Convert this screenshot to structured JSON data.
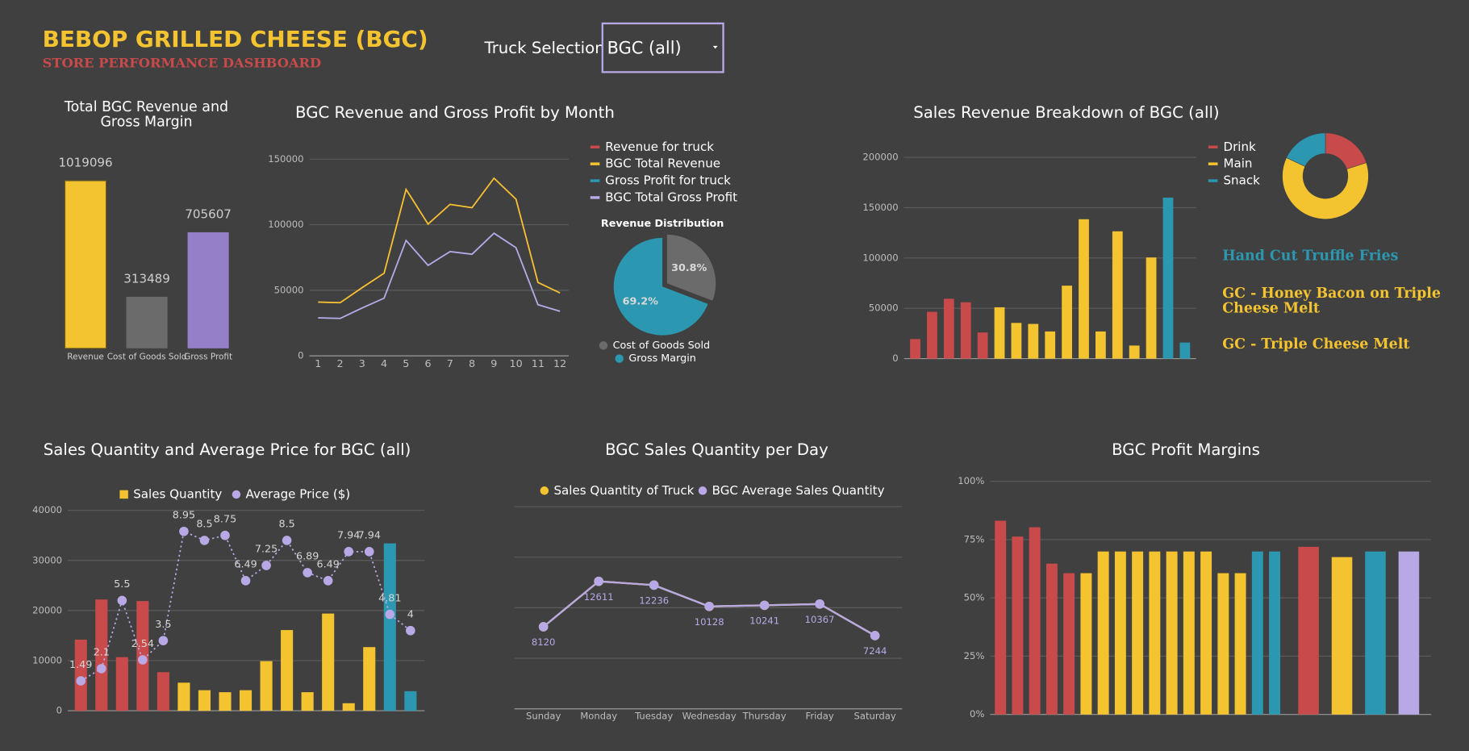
{
  "header": {
    "title": "BEBOP GRILLED CHEESE (BGC)",
    "subtitle": "STORE PERFORMANCE DASHBOARD"
  },
  "truck_selection": {
    "label": "Truck Selection",
    "value": "BGC (all)"
  },
  "chart_data": [
    {
      "type": "bar",
      "title": "Total BGC Revenue and Gross Margin",
      "categories": [
        "Revenue",
        "Cost of Goods Sold",
        "Gross Profit"
      ],
      "values": [
        1019096,
        313489,
        705607
      ],
      "colors": [
        "#f4c430",
        "#6b6b6b",
        "#9480c8"
      ]
    },
    {
      "type": "line",
      "title": "BGC Revenue and Gross Profit by Month",
      "x": [
        1,
        2,
        3,
        4,
        5,
        6,
        7,
        8,
        9,
        10,
        11,
        12
      ],
      "xlim": [
        0.6,
        12.4
      ],
      "xticks": [
        1,
        2,
        3,
        4,
        5,
        6,
        7,
        8,
        9,
        10,
        11,
        12
      ],
      "ylim": [
        0,
        150000
      ],
      "yticks": [
        0,
        50000,
        100000,
        150000
      ],
      "grid": true,
      "series": [
        {
          "name": "Revenue for truck",
          "color": "#c94a4a",
          "values": [
            41000,
            40500,
            52000,
            63000,
            127000,
            100500,
            115500,
            113000,
            135500,
            119500,
            56000,
            48000
          ]
        },
        {
          "name": "BGC Total Revenue",
          "color": "#f4c430",
          "values": [
            41000,
            40500,
            52000,
            63000,
            127000,
            100500,
            115500,
            113000,
            135500,
            119500,
            56000,
            48000
          ]
        },
        {
          "name": "Gross Profit for truck",
          "color": "#2b97b0",
          "values": [
            29000,
            28500,
            36500,
            44000,
            88000,
            69000,
            79500,
            77500,
            93500,
            82500,
            39000,
            34000
          ]
        },
        {
          "name": "BGC Total Gross Profit",
          "color": "#b8a9e6",
          "values": [
            29000,
            28500,
            36500,
            44000,
            88000,
            69000,
            79500,
            77500,
            93500,
            82500,
            39000,
            34000
          ]
        }
      ]
    },
    {
      "type": "pie",
      "title": "Revenue Distribution",
      "categories": [
        "Cost of Goods Sold",
        "Gross Margin"
      ],
      "values": [
        30.8,
        69.2
      ],
      "value_labels": [
        "30.8%",
        "69.2%"
      ],
      "colors": [
        "#6b6b6b",
        "#2b97b0"
      ]
    },
    {
      "type": "bar",
      "title": "Sales Revenue Breakdown of BGC (all)",
      "values": [
        19500,
        46500,
        59500,
        56000,
        26000,
        51000,
        35500,
        34500,
        27000,
        72500,
        138500,
        27000,
        126500,
        13000,
        100500,
        160000,
        16000
      ],
      "colors": [
        "#c94a4a",
        "#c94a4a",
        "#c94a4a",
        "#c94a4a",
        "#c94a4a",
        "#f4c430",
        "#f4c430",
        "#f4c430",
        "#f4c430",
        "#f4c430",
        "#f4c430",
        "#f4c430",
        "#f4c430",
        "#f4c430",
        "#f4c430",
        "#2b97b0",
        "#2b97b0"
      ],
      "ylim": [
        0,
        200000
      ],
      "yticks": [
        0,
        50000,
        100000,
        150000,
        200000
      ],
      "grid": true,
      "annotations": [
        {
          "text": "Hand Cut Truffle Fries",
          "color": "#2b97b0"
        },
        {
          "text": "GC - Honey Bacon on Triple Cheese Melt",
          "color": "#f4c430"
        },
        {
          "text": "GC - Triple Cheese Melt",
          "color": "#f4c430"
        }
      ]
    },
    {
      "type": "donut",
      "categories": [
        "Drink",
        "Main",
        "Snack"
      ],
      "values": [
        20,
        62,
        18
      ],
      "colors": [
        "#c94a4a",
        "#f4c430",
        "#2b97b0"
      ]
    },
    {
      "type": "bar",
      "title": "Sales Quantity and Average Price for BGC (all)",
      "ylim": [
        0,
        40000
      ],
      "yticks": [
        0,
        10000,
        20000,
        30000,
        40000
      ],
      "y2lim": [
        0,
        10
      ],
      "grid": true,
      "series": [
        {
          "name": "Sales Quantity",
          "type": "bar",
          "color": "#f4c430",
          "colors": [
            "#c94a4a",
            "#c94a4a",
            "#c94a4a",
            "#c94a4a",
            "#c94a4a",
            "#f4c430",
            "#f4c430",
            "#f4c430",
            "#f4c430",
            "#f4c430",
            "#f4c430",
            "#f4c430",
            "#f4c430",
            "#f4c430",
            "#f4c430",
            "#2b97b0",
            "#2b97b0"
          ],
          "values": [
            14200,
            22200,
            10700,
            21900,
            7700,
            5600,
            4100,
            3700,
            4100,
            9900,
            16100,
            3700,
            19400,
            1500,
            12700,
            33400,
            3900
          ]
        },
        {
          "name": "Average Price ($)",
          "type": "line",
          "axis": "y2",
          "color": "#b8a9e6",
          "values": [
            1.49,
            2.1,
            5.5,
            2.54,
            3.5,
            8.95,
            8.5,
            8.75,
            6.49,
            7.25,
            8.5,
            6.89,
            6.49,
            7.94,
            7.94,
            4.81,
            4
          ]
        }
      ]
    },
    {
      "type": "line",
      "title": "BGC Sales Quantity per Day",
      "categories": [
        "Sunday",
        "Monday",
        "Tuesday",
        "Wednesday",
        "Thursday",
        "Friday",
        "Saturday"
      ],
      "ylim": [
        0,
        20000
      ],
      "yticks": [
        0,
        5000,
        10000,
        15000,
        20000
      ],
      "grid": true,
      "tick_labels": false,
      "series": [
        {
          "name": "Sales Quantity of Truck",
          "color": "#f4c430",
          "values": [
            8120,
            12611,
            12236,
            10128,
            10241,
            10367,
            7244
          ]
        },
        {
          "name": "BGC Average Sales Quantity",
          "color": "#b8a9e6",
          "values": [
            8120,
            12611,
            12236,
            10128,
            10241,
            10367,
            7244
          ]
        }
      ]
    },
    {
      "type": "bar",
      "title": "BGC Profit Margins",
      "values": [
        83.1,
        76.3,
        80.3,
        64.7,
        60.6,
        60.6,
        69.9,
        69.9,
        69.9,
        69.9,
        69.9,
        69.9,
        69.9,
        60.6,
        60.6,
        69.9,
        69.9,
        71.9,
        67.5,
        69.9,
        69.9
      ],
      "colors": [
        "#c94a4a",
        "#c94a4a",
        "#c94a4a",
        "#c94a4a",
        "#c94a4a",
        "#f4c430",
        "#f4c430",
        "#f4c430",
        "#f4c430",
        "#f4c430",
        "#f4c430",
        "#f4c430",
        "#f4c430",
        "#f4c430",
        "#f4c430",
        "#2b97b0",
        "#2b97b0",
        "#c94a4a",
        "#f4c430",
        "#2b97b0",
        "#b8a9e6"
      ],
      "ylim": [
        0,
        100
      ],
      "grid": true,
      "yticks": [
        {
          "value": 0,
          "label": "0%"
        },
        {
          "value": 25,
          "label": "25%"
        },
        {
          "value": 50,
          "label": "50%"
        },
        {
          "value": 75,
          "label": "75%"
        },
        {
          "value": 100,
          "label": "100%"
        }
      ]
    }
  ]
}
